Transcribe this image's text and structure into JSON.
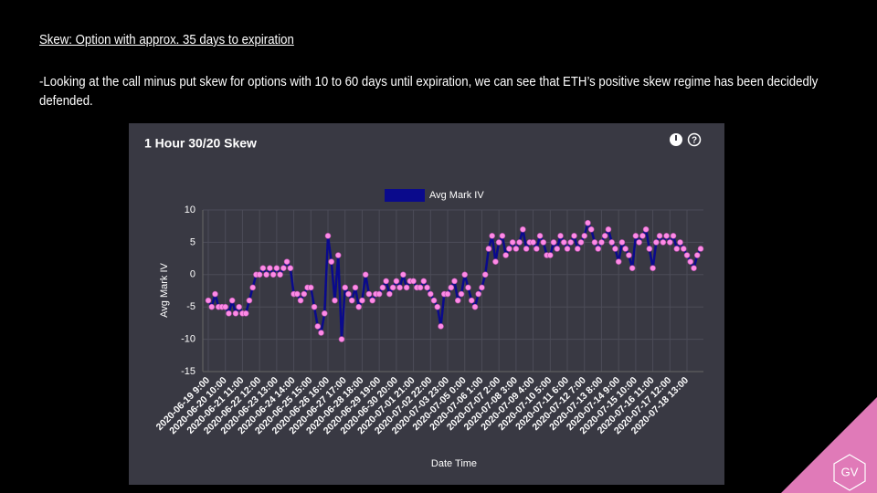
{
  "slide": {
    "title": "Skew: Option with approx. 35 days to expiration",
    "body": "-Looking at the call minus put skew for options with 10 to 60 days until expiration, we can see that ETH’s positive skew regime has been decidedly defended.",
    "logo": "GV"
  },
  "chart_data": {
    "type": "line",
    "title": "1 Hour 30/20 Skew",
    "xlabel": "Date Time",
    "ylabel": "Avg Mark IV",
    "categories": [
      "2020-06-19 9:00",
      null,
      null,
      null,
      null,
      "2020-06-20 10:00",
      null,
      null,
      null,
      null,
      "2020-06-21 11:00",
      null,
      null,
      null,
      null,
      "2020-06-22 12:00",
      null,
      null,
      null,
      null,
      "2020-06-23 13:00",
      null,
      null,
      null,
      null,
      "2020-06-24 14:00",
      null,
      null,
      null,
      null,
      "2020-06-25 15:00",
      null,
      null,
      null,
      null,
      "2020-06-26 16:00",
      null,
      null,
      null,
      null,
      "2020-06-27 17:00",
      null,
      null,
      null,
      null,
      "2020-06-28 18:00",
      null,
      null,
      null,
      null,
      "2020-06-29 19:00",
      null,
      null,
      null,
      null,
      "2020-06-30 20:00",
      null,
      null,
      null,
      null,
      "2020-07-01 21:00",
      null,
      null,
      null,
      null,
      "2020-07-02 22:00",
      null,
      null,
      null,
      null,
      "2020-07-03 23:00",
      null,
      null,
      null,
      null,
      "2020-07-05 0:00",
      null,
      null,
      null,
      null,
      "2020-07-06 1:00",
      null,
      null,
      null,
      null,
      "2020-07-07 2:00",
      null,
      null,
      null,
      null,
      "2020-07-08 3:00",
      null,
      null,
      null,
      null,
      "2020-07-09 4:00",
      null,
      null,
      null,
      null,
      "2020-07-10 5:00",
      null,
      null,
      null,
      null,
      "2020-07-11 6:00",
      null,
      null,
      null,
      null,
      "2020-07-12 7:00",
      null,
      null,
      null,
      null,
      "2020-07-13 8:00",
      null,
      null,
      null,
      null,
      "2020-07-14 9:00",
      null,
      null,
      null,
      null,
      "2020-07-15 10:00",
      null,
      null,
      null,
      null,
      "2020-07-16 11:00",
      null,
      null,
      null,
      null,
      "2020-07-17 12:00",
      null,
      null,
      null,
      null,
      "2020-07-18 13:00",
      null,
      null,
      null,
      null
    ],
    "series": [
      {
        "name": "Avg Mark IV",
        "color": "#0a0a8c",
        "marker_color": "#ff8ae6",
        "values": [
          -4,
          -5,
          -3,
          -5,
          -5,
          -5,
          -6,
          -4,
          -6,
          -5,
          -6,
          -6,
          -4,
          -2,
          0,
          0,
          1,
          0,
          1,
          0,
          1,
          0,
          1,
          2,
          1,
          -3,
          -3,
          -4,
          -3,
          -2,
          -2,
          -5,
          -8,
          -9,
          -6,
          6,
          2,
          -4,
          3,
          -10,
          -2,
          -3,
          -4,
          -2,
          -5,
          -4,
          0,
          -3,
          -4,
          -3,
          -3,
          -2,
          -1,
          -3,
          -2,
          -1,
          -2,
          0,
          -2,
          -1,
          -1,
          -2,
          -2,
          -1,
          -2,
          -3,
          -4,
          -5,
          -8,
          -3,
          -3,
          -2,
          -1,
          -4,
          -3,
          0,
          -2,
          -4,
          -5,
          -3,
          -2,
          0,
          4,
          6,
          2,
          5,
          6,
          3,
          4,
          5,
          4,
          5,
          7,
          4,
          5,
          5,
          4,
          6,
          5,
          3,
          3,
          5,
          4,
          6,
          5,
          4,
          5,
          6,
          4,
          5,
          6,
          8,
          7,
          5,
          4,
          5,
          6,
          7,
          5,
          4,
          2,
          5,
          4,
          3,
          1,
          6,
          5,
          6,
          7,
          4,
          1,
          5,
          6,
          5,
          6,
          5,
          6,
          4,
          5,
          4,
          3,
          2,
          1,
          3,
          4
        ]
      }
    ],
    "ylim": [
      -15,
      10
    ],
    "yticks": [
      10,
      5,
      0,
      -5,
      -10,
      -15
    ],
    "grid": true
  }
}
